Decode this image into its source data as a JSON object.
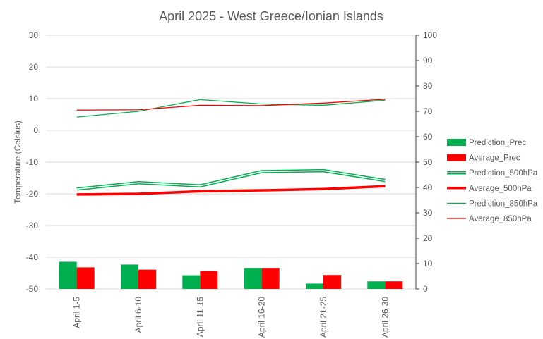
{
  "chart_data": {
    "type": "bar",
    "title": "April 2025 - West Greece/Ionian Islands",
    "ylabel": "Temperature (Celsius)",
    "y2label": "",
    "categories": [
      "April 1-5",
      "April 6-10",
      "April 11-15",
      "April 16-20",
      "April 21-25",
      "April 26-30"
    ],
    "ylim": [
      -50,
      30
    ],
    "y_ticks": [
      30,
      20,
      10,
      0,
      -10,
      -20,
      -30,
      -40,
      -50
    ],
    "y2lim": [
      0,
      100
    ],
    "y2_ticks": [
      100,
      90,
      80,
      70,
      60,
      50,
      40,
      30,
      20,
      10,
      0
    ],
    "grid": true,
    "legend_position": "right",
    "series": [
      {
        "name": "Prediction_Prec",
        "type": "bar",
        "axis": "right",
        "color": "#00b050",
        "values": [
          10.7,
          9.6,
          5.4,
          8.3,
          2.1,
          3.0
        ]
      },
      {
        "name": "Average_Prec",
        "type": "bar",
        "axis": "right",
        "color": "#ff0000",
        "values": [
          8.5,
          7.6,
          7.1,
          8.3,
          5.5,
          3.0
        ]
      },
      {
        "name": "Prediction_500hPa",
        "type": "line",
        "style": "double",
        "axis": "left",
        "color": "#00b050",
        "values": [
          -18.5,
          -16.5,
          -17.5,
          -13.0,
          -12.7,
          -15.8
        ]
      },
      {
        "name": "Average_500hPa",
        "type": "line",
        "style": "thick",
        "axis": "left",
        "color": "#ff0000",
        "values": [
          -20.2,
          -20.0,
          -19.2,
          -18.9,
          -18.5,
          -17.6
        ]
      },
      {
        "name": "Prediction_850hPa",
        "type": "line",
        "style": "thin",
        "axis": "left",
        "color": "#00b050",
        "values": [
          4.2,
          6.0,
          9.7,
          8.3,
          7.9,
          9.5
        ]
      },
      {
        "name": "Average_850hPa",
        "type": "line",
        "style": "thin",
        "axis": "left",
        "color": "#ff0000",
        "values": [
          6.4,
          6.5,
          7.9,
          7.8,
          8.6,
          9.8
        ]
      }
    ]
  }
}
